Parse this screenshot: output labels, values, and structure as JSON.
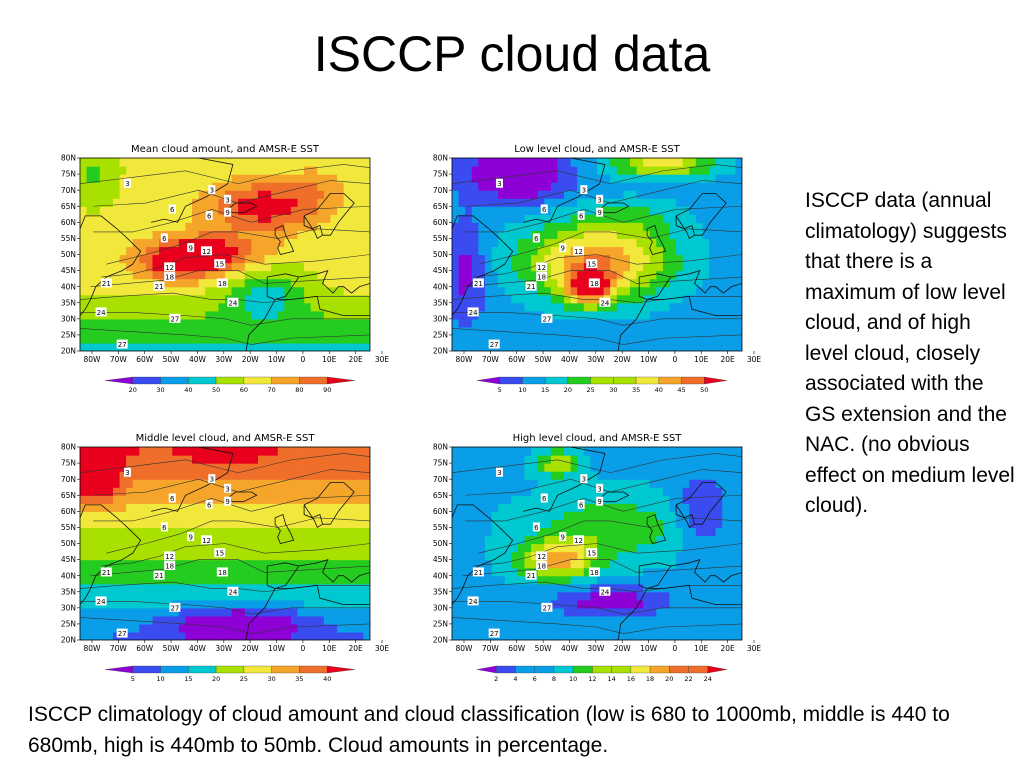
{
  "slide": {
    "title": "ISCCP cloud data",
    "side_text": "ISCCP data (annual climatology) suggests that there is a maximum of low level cloud, and of high level cloud, closely associated with the GS extension and the NAC. (no obvious effect on medium level cloud).",
    "caption": "ISCCP climatology of cloud amount and cloud classification (low is 680 to 1000mb, middle is 440 to 680mb, high is 440mb to 50mb. Cloud amounts in percentage."
  },
  "map_axes": {
    "lat_labels": [
      "80N",
      "75N",
      "70N",
      "65N",
      "60N",
      "55N",
      "50N",
      "45N",
      "40N",
      "35N",
      "30N",
      "25N",
      "20N"
    ],
    "lon_labels": [
      "80W",
      "70W",
      "60W",
      "50W",
      "40W",
      "30W",
      "20W",
      "10W",
      "0",
      "10E",
      "20E",
      "30E"
    ]
  },
  "sst_contour_labels": [
    "3",
    "3",
    "6",
    "3",
    "6",
    "9",
    "6",
    "9",
    "12",
    "15",
    "12",
    "18",
    "21",
    "18",
    "21",
    "24",
    "24",
    "27"
  ],
  "chart_data": [
    {
      "type": "heatmap",
      "title": "Mean cloud amount, and AMSR-E SST",
      "colorbar_ticks": [
        "20",
        "30",
        "40",
        "50",
        "60",
        "70",
        "80",
        "90"
      ],
      "palette": [
        "#8d00d6",
        "#3a4cf0",
        "#0a9ee8",
        "#00c8d0",
        "#25cc20",
        "#a8e000",
        "#f2e83c",
        "#f5a62a",
        "#ee6e2a",
        "#e8001c"
      ]
    },
    {
      "type": "heatmap",
      "title": "Low level cloud, and AMSR-E SST",
      "colorbar_ticks": [
        "5",
        "10",
        "15",
        "20",
        "25",
        "30",
        "35",
        "40",
        "45",
        "50"
      ],
      "palette": [
        "#8d00d6",
        "#3a4cf0",
        "#0a9ee8",
        "#00c8d0",
        "#25cc20",
        "#a8e000",
        "#f2e83c",
        "#f5a62a",
        "#ee6e2a",
        "#e8001c"
      ]
    },
    {
      "type": "heatmap",
      "title": "Middle level cloud, and AMSR-E SST",
      "colorbar_ticks": [
        "5",
        "10",
        "15",
        "20",
        "25",
        "30",
        "35",
        "40"
      ],
      "palette": [
        "#8d00d6",
        "#3a4cf0",
        "#0a9ee8",
        "#00c8d0",
        "#25cc20",
        "#a8e000",
        "#f2e83c",
        "#f5a62a",
        "#ee6e2a",
        "#e8001c"
      ]
    },
    {
      "type": "heatmap",
      "title": "High level cloud, and AMSR-E SST",
      "colorbar_ticks": [
        "2",
        "4",
        "6",
        "8",
        "10",
        "12",
        "14",
        "16",
        "18",
        "20",
        "22",
        "24"
      ],
      "palette": [
        "#8d00d6",
        "#3a4cf0",
        "#0a9ee8",
        "#00c8d0",
        "#25cc20",
        "#a8e000",
        "#f2e83c",
        "#f5a62a",
        "#ee6e2a",
        "#e8001c"
      ]
    }
  ]
}
